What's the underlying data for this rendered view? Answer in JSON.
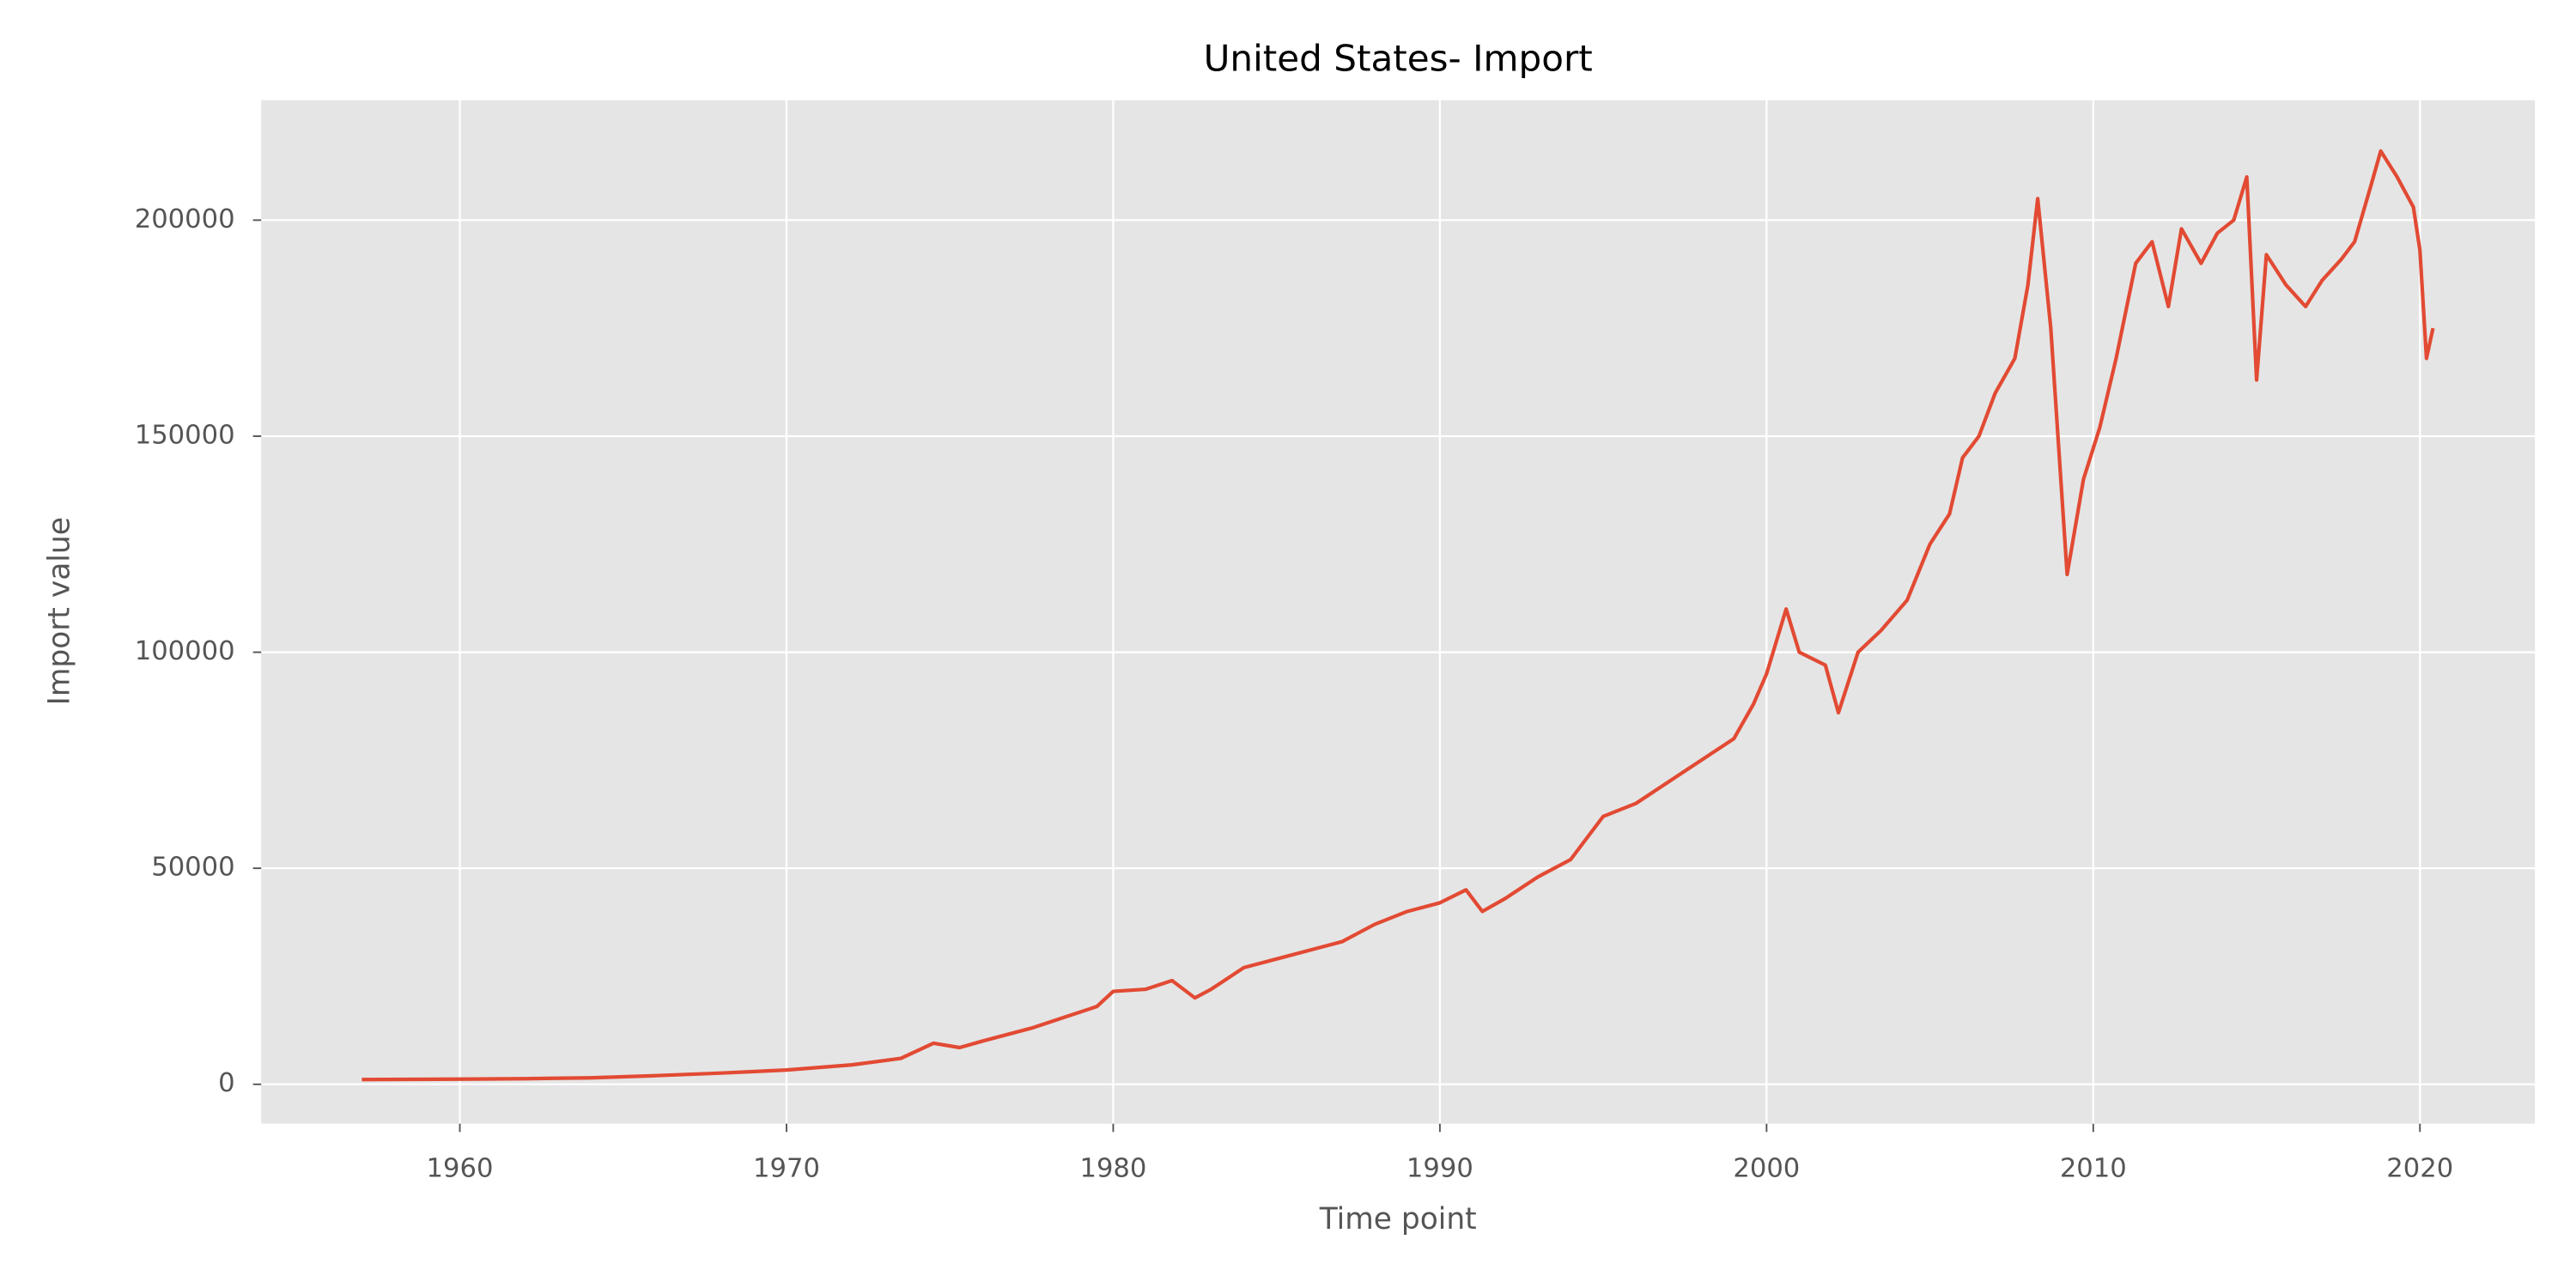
{
  "chart_data": {
    "type": "line",
    "title": "United States- Import",
    "x_label": "Time point",
    "y_label": "Import value",
    "x": [
      1957,
      1960,
      1962,
      1964,
      1966,
      1968,
      1970,
      1972,
      1973.5,
      1974.5,
      1975.3,
      1976,
      1977.5,
      1978.5,
      1979.5,
      1980,
      1981,
      1981.8,
      1982.5,
      1983,
      1984,
      1985,
      1986,
      1987,
      1988,
      1989,
      1990,
      1990.8,
      1991.3,
      1992,
      1993,
      1994,
      1995,
      1996,
      1997,
      1998,
      1999,
      1999.6,
      2000,
      2000.6,
      2001,
      2001.8,
      2002.2,
      2002.8,
      2003.5,
      2004.3,
      2005,
      2005.6,
      2006,
      2006.5,
      2007,
      2007.6,
      2008,
      2008.3,
      2008.7,
      2009.2,
      2009.7,
      2010.2,
      2010.7,
      2011.3,
      2011.8,
      2012.3,
      2012.7,
      2013.3,
      2013.8,
      2014.3,
      2014.7,
      2015,
      2015.3,
      2015.9,
      2016.5,
      2017,
      2017.6,
      2018,
      2018.5,
      2018.8,
      2019.3,
      2019.8,
      2020.0,
      2020.2,
      2020.4
    ],
    "series": [
      {
        "name": "Import",
        "color": "#e24a33",
        "values": [
          1100,
          1200,
          1300,
          1500,
          2000,
          2600,
          3300,
          4500,
          6000,
          9500,
          8500,
          10000,
          13000,
          15500,
          18000,
          21500,
          22000,
          24000,
          20000,
          22000,
          27000,
          29000,
          31000,
          33000,
          37000,
          40000,
          42000,
          45000,
          40000,
          43000,
          48000,
          52000,
          62000,
          65000,
          70000,
          75000,
          80000,
          88000,
          95000,
          110000,
          100000,
          97000,
          86000,
          100000,
          105000,
          112000,
          125000,
          132000,
          145000,
          150000,
          160000,
          168000,
          185000,
          205000,
          175000,
          118000,
          140000,
          152000,
          168000,
          190000,
          195000,
          180000,
          198000,
          190000,
          197000,
          200000,
          210000,
          163000,
          192000,
          185000,
          180000,
          186000,
          191000,
          195000,
          208000,
          216000,
          210000,
          203000,
          193000,
          168000,
          175000
        ]
      }
    ],
    "xlim": [
      1953.92,
      2023.52
    ],
    "xticks": [
      1960,
      1970,
      1980,
      1990,
      2000,
      2010,
      2020
    ],
    "ylim": [
      -9125,
      227757
    ],
    "yticks": [
      0,
      50000,
      100000,
      150000,
      200000
    ],
    "grid": true
  }
}
